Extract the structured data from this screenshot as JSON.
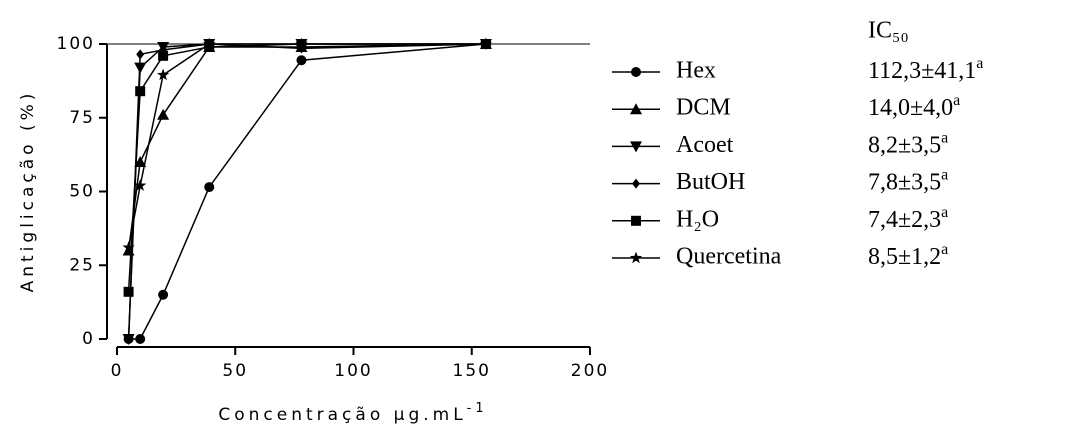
{
  "chart_data": {
    "type": "line",
    "x_label": "Concentração µg.mL",
    "x_label_sup": "-1",
    "y_label": "Antiglicação (%)",
    "x": [
      4.9,
      9.8,
      19.5,
      39,
      78,
      156
    ],
    "xlim": [
      0,
      200
    ],
    "xticks": [
      0,
      50,
      100,
      150,
      200
    ],
    "ylim": [
      0,
      100
    ],
    "yticks": [
      0,
      25,
      50,
      75,
      100
    ],
    "ic50_header": "IC₅₀",
    "series": [
      {
        "name": "Hex",
        "color": "#000000",
        "marker": "circle",
        "values": [
          0,
          0,
          15,
          51.5,
          94.5,
          100
        ],
        "ic50": "112,3±41,1",
        "ic50_sup": "a"
      },
      {
        "name": "DCM",
        "color": "#000000",
        "marker": "triangle-up",
        "values": [
          30,
          60,
          76,
          99,
          99,
          100
        ],
        "ic50": "14,0±4,0",
        "ic50_sup": "a"
      },
      {
        "name": "Acoet",
        "color": "#000000",
        "marker": "triangle-down",
        "values": [
          0,
          92,
          99,
          100,
          100,
          100
        ],
        "ic50": "8,2±3,5",
        "ic50_sup": "a"
      },
      {
        "name": "ButOH",
        "color": "#000000",
        "marker": "diamond",
        "values": [
          0,
          96.5,
          98,
          100,
          98.5,
          100
        ],
        "ic50": "7,8±3,5",
        "ic50_sup": "a"
      },
      {
        "name": "H₂O",
        "color": "#000000",
        "marker": "square",
        "values": [
          16,
          84,
          96,
          99,
          100,
          100
        ],
        "ic50": "7,4±2,3",
        "ic50_sup": "a"
      },
      {
        "name": "Quercetina",
        "color": "#000000",
        "marker": "star",
        "values": [
          31,
          52,
          89.5,
          100,
          100,
          100
        ],
        "ic50": "8,5±1,2",
        "ic50_sup": "a"
      }
    ]
  }
}
